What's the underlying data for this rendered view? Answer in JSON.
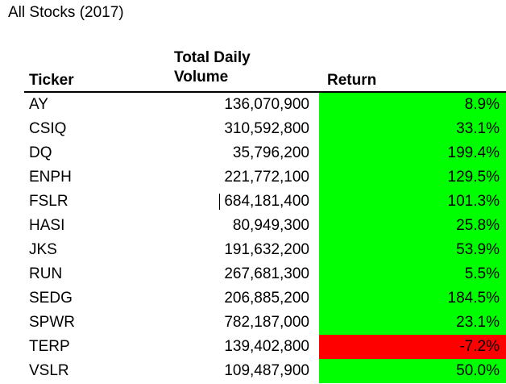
{
  "sheet": {
    "title": "All Stocks (2017)",
    "headers": {
      "ticker": "Ticker",
      "volume_line1": "Total Daily",
      "volume_line2": "Volume",
      "return": "Return"
    },
    "colors": {
      "positive": "#00ff00",
      "negative": "#ff0000"
    },
    "rows": [
      {
        "ticker": "AY",
        "volume": "136,070,900",
        "return": "8.9%",
        "status": "positive"
      },
      {
        "ticker": "CSIQ",
        "volume": "310,592,800",
        "return": "33.1%",
        "status": "positive"
      },
      {
        "ticker": "DQ",
        "volume": "35,796,200",
        "return": "199.4%",
        "status": "positive"
      },
      {
        "ticker": "ENPH",
        "volume": "221,772,100",
        "return": "129.5%",
        "status": "positive"
      },
      {
        "ticker": "FSLR",
        "volume": "684,181,400",
        "return": "101.3%",
        "status": "positive"
      },
      {
        "ticker": "HASI",
        "volume": "80,949,300",
        "return": "25.8%",
        "status": "positive"
      },
      {
        "ticker": "JKS",
        "volume": "191,632,200",
        "return": "53.9%",
        "status": "positive"
      },
      {
        "ticker": "RUN",
        "volume": "267,681,300",
        "return": "5.5%",
        "status": "positive"
      },
      {
        "ticker": "SEDG",
        "volume": "206,885,200",
        "return": "184.5%",
        "status": "positive"
      },
      {
        "ticker": "SPWR",
        "volume": "782,187,000",
        "return": "23.1%",
        "status": "positive"
      },
      {
        "ticker": "TERP",
        "volume": "139,402,800",
        "return": "-7.2%",
        "status": "negative"
      },
      {
        "ticker": "VSLR",
        "volume": "109,487,900",
        "return": "50.0%",
        "status": "positive"
      }
    ]
  }
}
